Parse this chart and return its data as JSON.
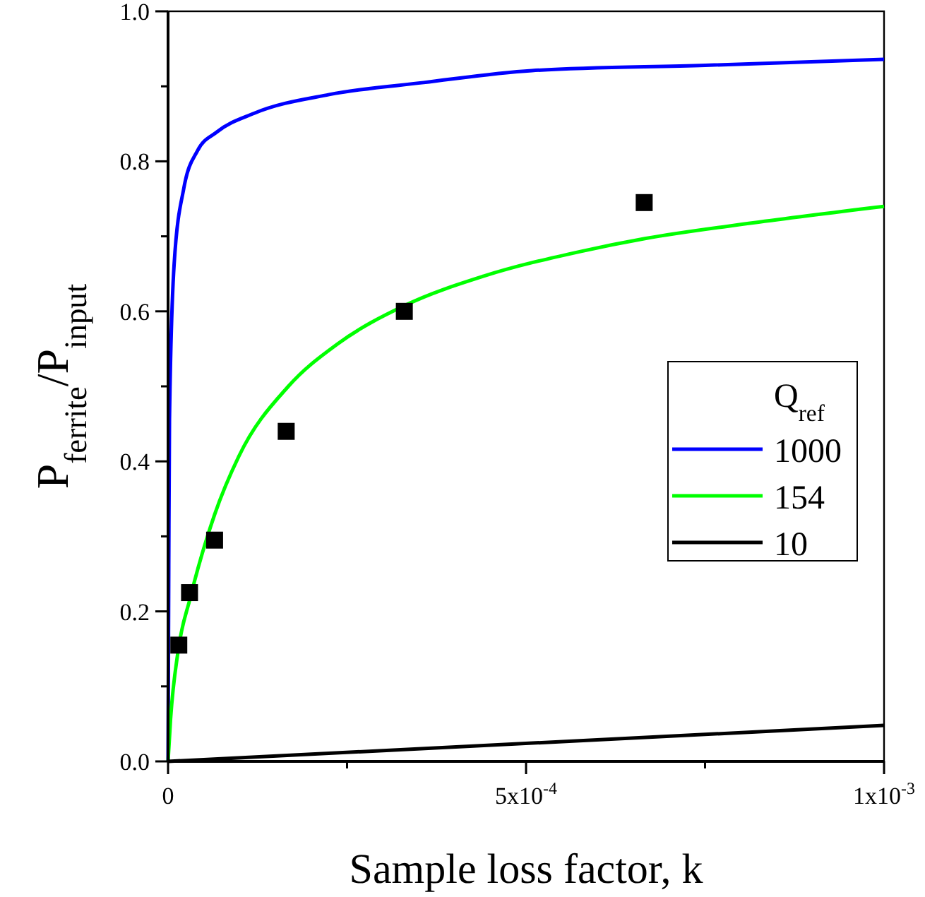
{
  "chart_data": {
    "type": "line",
    "xlabel": "Sample loss factor, k",
    "ylabel": "P$_{ferrite}$/P$_{input}$",
    "legend_title": "Q$_{ref}$",
    "xlim": [
      0,
      0.001
    ],
    "ylim": [
      0,
      1
    ],
    "xticks": [
      {
        "value": 0,
        "label": "0"
      },
      {
        "value": 0.00025,
        "label": null
      },
      {
        "value": 0.0005,
        "label": "5x10$^{-4}$"
      },
      {
        "value": 0.00075,
        "label": null
      },
      {
        "value": 0.001,
        "label": "1x10$^{-3}$"
      }
    ],
    "yticks": [
      {
        "value": 0,
        "label": "0.0"
      },
      {
        "value": 0.1,
        "label": null
      },
      {
        "value": 0.2,
        "label": "0.2"
      },
      {
        "value": 0.3,
        "label": null
      },
      {
        "value": 0.4,
        "label": "0.4"
      },
      {
        "value": 0.5,
        "label": null
      },
      {
        "value": 0.6,
        "label": "0.6"
      },
      {
        "value": 0.7,
        "label": null
      },
      {
        "value": 0.8,
        "label": "0.8"
      },
      {
        "value": 0.9,
        "label": null
      },
      {
        "value": 1,
        "label": "1.0"
      }
    ],
    "grid": false,
    "legend": "right",
    "series": [
      {
        "name": "1000",
        "color": "#0000ff",
        "marker": "none",
        "x": [
          0,
          1e-06,
          2e-06,
          8.5e-06,
          2.2e-05,
          4.1e-05,
          6.8e-05,
          0.00012,
          0.000225,
          0.000357,
          0.000508,
          0.00075,
          0.001
        ],
        "values": [
          0,
          0.26,
          0.456,
          0.663,
          0.764,
          0.814,
          0.839,
          0.864,
          0.889,
          0.905,
          0.921,
          0.928,
          0.936
        ]
      },
      {
        "name": "154",
        "color": "#00ff00",
        "marker": "none",
        "x": [
          0,
          3.5e-06,
          1.4e-05,
          3.1e-05,
          6.5e-05,
          9.9e-05,
          0.000168,
          0.000236,
          0.000331,
          0.000441,
          0.000577,
          0.000666,
          0.000817,
          0.001
        ],
        "values": [
          0,
          0.056,
          0.147,
          0.218,
          0.329,
          0.407,
          0.5,
          0.556,
          0.608,
          0.647,
          0.68,
          0.697,
          0.718,
          0.74
        ]
      },
      {
        "name": "10",
        "color": "#000000",
        "marker": "none",
        "x": [
          0,
          0.001
        ],
        "values": [
          0,
          0.048
        ]
      },
      {
        "color": "#000000",
        "type": "scatter",
        "marker": "square",
        "x": [
          1.5e-05,
          3e-05,
          6.5e-05,
          0.000165,
          0.00033,
          0.000665
        ],
        "values": [
          0.155,
          0.225,
          0.295,
          0.44,
          0.6,
          0.745
        ]
      }
    ]
  }
}
